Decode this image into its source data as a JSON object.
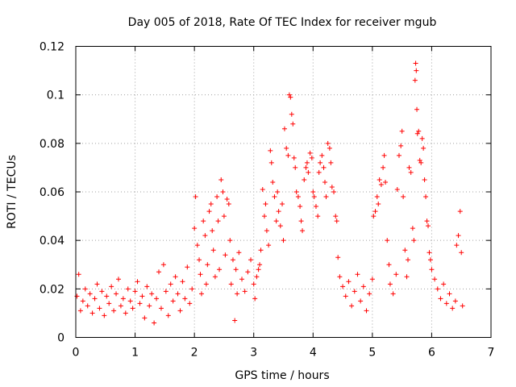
{
  "chart_data": {
    "type": "scatter",
    "title": "Day 005 of 2018, Rate Of TEC Index for receiver mgub",
    "xlabel": "GPS time / hours",
    "ylabel": "ROTI / TECUs",
    "xlim": [
      0,
      7
    ],
    "ylim": [
      0,
      0.12
    ],
    "xticks": [
      0,
      1,
      2,
      3,
      4,
      5,
      6,
      7
    ],
    "xtick_labels": [
      "0",
      "1",
      "2",
      "3",
      "4",
      "5",
      "6",
      "7"
    ],
    "yticks": [
      0,
      0.02,
      0.04,
      0.06,
      0.08,
      0.1,
      0.12
    ],
    "ytick_labels": [
      "0",
      "0.02",
      "0.04",
      "0.06",
      "0.08",
      "0.1",
      "0.12"
    ],
    "grid": true,
    "marker": "plus",
    "color": "#ff0000",
    "series": [
      {
        "name": "mgub",
        "points": [
          [
            0.02,
            0.017
          ],
          [
            0.05,
            0.026
          ],
          [
            0.08,
            0.011
          ],
          [
            0.12,
            0.015
          ],
          [
            0.16,
            0.02
          ],
          [
            0.2,
            0.013
          ],
          [
            0.24,
            0.018
          ],
          [
            0.28,
            0.01
          ],
          [
            0.32,
            0.016
          ],
          [
            0.36,
            0.022
          ],
          [
            0.4,
            0.012
          ],
          [
            0.44,
            0.019
          ],
          [
            0.48,
            0.009
          ],
          [
            0.52,
            0.017
          ],
          [
            0.56,
            0.014
          ],
          [
            0.6,
            0.021
          ],
          [
            0.64,
            0.011
          ],
          [
            0.68,
            0.018
          ],
          [
            0.72,
            0.024
          ],
          [
            0.76,
            0.013
          ],
          [
            0.8,
            0.016
          ],
          [
            0.84,
            0.01
          ],
          [
            0.88,
            0.02
          ],
          [
            0.92,
            0.015
          ],
          [
            0.96,
            0.012
          ],
          [
            1.0,
            0.019
          ],
          [
            1.04,
            0.023
          ],
          [
            1.08,
            0.014
          ],
          [
            1.12,
            0.017
          ],
          [
            1.16,
            0.008
          ],
          [
            1.2,
            0.021
          ],
          [
            1.24,
            0.013
          ],
          [
            1.28,
            0.018
          ],
          [
            1.32,
            0.006
          ],
          [
            1.36,
            0.016
          ],
          [
            1.4,
            0.027
          ],
          [
            1.44,
            0.012
          ],
          [
            1.48,
            0.03
          ],
          [
            1.52,
            0.019
          ],
          [
            1.56,
            0.009
          ],
          [
            1.6,
            0.022
          ],
          [
            1.64,
            0.015
          ],
          [
            1.68,
            0.025
          ],
          [
            1.72,
            0.018
          ],
          [
            1.76,
            0.011
          ],
          [
            1.8,
            0.023
          ],
          [
            1.84,
            0.016
          ],
          [
            1.88,
            0.029
          ],
          [
            1.92,
            0.014
          ],
          [
            1.96,
            0.02
          ],
          [
            2.0,
            0.045
          ],
          [
            2.02,
            0.058
          ],
          [
            2.05,
            0.038
          ],
          [
            2.08,
            0.032
          ],
          [
            2.1,
            0.026
          ],
          [
            2.12,
            0.018
          ],
          [
            2.15,
            0.048
          ],
          [
            2.18,
            0.042
          ],
          [
            2.2,
            0.022
          ],
          [
            2.22,
            0.03
          ],
          [
            2.25,
            0.052
          ],
          [
            2.28,
            0.055
          ],
          [
            2.3,
            0.044
          ],
          [
            2.32,
            0.036
          ],
          [
            2.35,
            0.025
          ],
          [
            2.38,
            0.058
          ],
          [
            2.4,
            0.048
          ],
          [
            2.42,
            0.028
          ],
          [
            2.45,
            0.065
          ],
          [
            2.48,
            0.06
          ],
          [
            2.5,
            0.05
          ],
          [
            2.52,
            0.034
          ],
          [
            2.55,
            0.057
          ],
          [
            2.58,
            0.055
          ],
          [
            2.6,
            0.04
          ],
          [
            2.62,
            0.022
          ],
          [
            2.65,
            0.032
          ],
          [
            2.68,
            0.007
          ],
          [
            2.7,
            0.028
          ],
          [
            2.72,
            0.018
          ],
          [
            2.75,
            0.035
          ],
          [
            2.8,
            0.024
          ],
          [
            2.85,
            0.019
          ],
          [
            2.9,
            0.027
          ],
          [
            2.95,
            0.032
          ],
          [
            3.0,
            0.022
          ],
          [
            3.02,
            0.016
          ],
          [
            3.05,
            0.025
          ],
          [
            3.08,
            0.028
          ],
          [
            3.1,
            0.03
          ],
          [
            3.12,
            0.036
          ],
          [
            3.15,
            0.061
          ],
          [
            3.18,
            0.05
          ],
          [
            3.2,
            0.055
          ],
          [
            3.22,
            0.044
          ],
          [
            3.25,
            0.038
          ],
          [
            3.28,
            0.077
          ],
          [
            3.3,
            0.072
          ],
          [
            3.32,
            0.064
          ],
          [
            3.35,
            0.058
          ],
          [
            3.38,
            0.048
          ],
          [
            3.4,
            0.06
          ],
          [
            3.42,
            0.052
          ],
          [
            3.45,
            0.046
          ],
          [
            3.48,
            0.055
          ],
          [
            3.5,
            0.04
          ],
          [
            3.52,
            0.086
          ],
          [
            3.55,
            0.078
          ],
          [
            3.58,
            0.075
          ],
          [
            3.6,
            0.1
          ],
          [
            3.62,
            0.099
          ],
          [
            3.64,
            0.092
          ],
          [
            3.66,
            0.088
          ],
          [
            3.68,
            0.074
          ],
          [
            3.7,
            0.07
          ],
          [
            3.72,
            0.06
          ],
          [
            3.75,
            0.058
          ],
          [
            3.78,
            0.054
          ],
          [
            3.8,
            0.048
          ],
          [
            3.82,
            0.044
          ],
          [
            3.85,
            0.065
          ],
          [
            3.88,
            0.07
          ],
          [
            3.9,
            0.072
          ],
          [
            3.92,
            0.068
          ],
          [
            3.95,
            0.076
          ],
          [
            3.98,
            0.074
          ],
          [
            4.0,
            0.06
          ],
          [
            4.02,
            0.058
          ],
          [
            4.05,
            0.054
          ],
          [
            4.08,
            0.05
          ],
          [
            4.1,
            0.068
          ],
          [
            4.12,
            0.072
          ],
          [
            4.15,
            0.075
          ],
          [
            4.18,
            0.07
          ],
          [
            4.2,
            0.064
          ],
          [
            4.22,
            0.058
          ],
          [
            4.25,
            0.08
          ],
          [
            4.28,
            0.078
          ],
          [
            4.3,
            0.072
          ],
          [
            4.32,
            0.062
          ],
          [
            4.35,
            0.06
          ],
          [
            4.38,
            0.05
          ],
          [
            4.4,
            0.048
          ],
          [
            4.42,
            0.033
          ],
          [
            4.45,
            0.025
          ],
          [
            4.5,
            0.021
          ],
          [
            4.55,
            0.017
          ],
          [
            4.6,
            0.023
          ],
          [
            4.65,
            0.013
          ],
          [
            4.7,
            0.019
          ],
          [
            4.75,
            0.026
          ],
          [
            4.8,
            0.015
          ],
          [
            4.85,
            0.021
          ],
          [
            4.9,
            0.011
          ],
          [
            4.95,
            0.018
          ],
          [
            5.0,
            0.024
          ],
          [
            5.02,
            0.05
          ],
          [
            5.05,
            0.052
          ],
          [
            5.08,
            0.058
          ],
          [
            5.1,
            0.055
          ],
          [
            5.12,
            0.065
          ],
          [
            5.15,
            0.063
          ],
          [
            5.18,
            0.07
          ],
          [
            5.2,
            0.075
          ],
          [
            5.22,
            0.064
          ],
          [
            5.25,
            0.04
          ],
          [
            5.28,
            0.03
          ],
          [
            5.3,
            0.022
          ],
          [
            5.35,
            0.018
          ],
          [
            5.4,
            0.026
          ],
          [
            5.42,
            0.061
          ],
          [
            5.45,
            0.075
          ],
          [
            5.48,
            0.079
          ],
          [
            5.5,
            0.085
          ],
          [
            5.52,
            0.058
          ],
          [
            5.55,
            0.036
          ],
          [
            5.58,
            0.025
          ],
          [
            5.6,
            0.032
          ],
          [
            5.62,
            0.07
          ],
          [
            5.65,
            0.068
          ],
          [
            5.68,
            0.045
          ],
          [
            5.7,
            0.04
          ],
          [
            5.72,
            0.106
          ],
          [
            5.73,
            0.113
          ],
          [
            5.74,
            0.11
          ],
          [
            5.75,
            0.094
          ],
          [
            5.76,
            0.084
          ],
          [
            5.78,
            0.085
          ],
          [
            5.8,
            0.073
          ],
          [
            5.82,
            0.072
          ],
          [
            5.84,
            0.082
          ],
          [
            5.86,
            0.078
          ],
          [
            5.88,
            0.065
          ],
          [
            5.9,
            0.058
          ],
          [
            5.92,
            0.048
          ],
          [
            5.94,
            0.046
          ],
          [
            5.96,
            0.035
          ],
          [
            5.98,
            0.032
          ],
          [
            6.0,
            0.028
          ],
          [
            6.05,
            0.024
          ],
          [
            6.1,
            0.02
          ],
          [
            6.15,
            0.016
          ],
          [
            6.2,
            0.022
          ],
          [
            6.25,
            0.014
          ],
          [
            6.3,
            0.018
          ],
          [
            6.35,
            0.012
          ],
          [
            6.4,
            0.015
          ],
          [
            6.42,
            0.038
          ],
          [
            6.45,
            0.042
          ],
          [
            6.48,
            0.052
          ],
          [
            6.5,
            0.035
          ],
          [
            6.52,
            0.013
          ]
        ]
      }
    ]
  }
}
